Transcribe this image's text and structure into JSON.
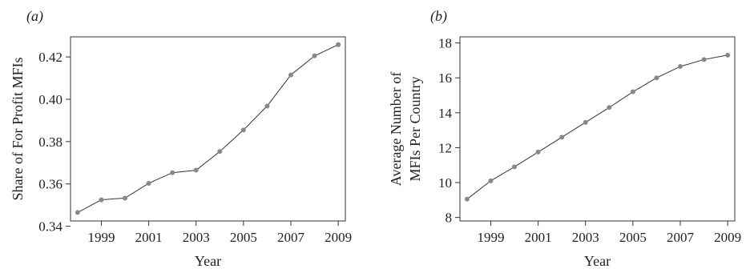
{
  "chart_data": [
    {
      "panel_label": "(a)",
      "type": "line",
      "x": [
        1998,
        1999,
        2000,
        2001,
        2002,
        2003,
        2004,
        2005,
        2006,
        2007,
        2008,
        2009
      ],
      "series": [
        {
          "values": [
            0.3465,
            0.3525,
            0.3533,
            0.3603,
            0.3653,
            0.3665,
            0.3753,
            0.3855,
            0.3968,
            0.4115,
            0.4205,
            0.4258
          ]
        }
      ],
      "xlabel": "Year",
      "ylabel": "Share of For Profit MFIs",
      "xticks": [
        1999,
        2001,
        2003,
        2005,
        2007,
        2009
      ],
      "yticks": [
        0.34,
        0.36,
        0.38,
        0.4,
        0.42
      ],
      "ytick_labels": [
        "0.34",
        "0.36",
        "0.38",
        "0.40",
        "0.42"
      ],
      "xlim": [
        1997.7,
        2009.3
      ],
      "ylim": [
        0.3425,
        0.4295
      ],
      "grid": false,
      "line_color": "#333333",
      "point_color": "#888888"
    },
    {
      "panel_label": "(b)",
      "type": "line",
      "x": [
        1998,
        1999,
        2000,
        2001,
        2002,
        2003,
        2004,
        2005,
        2006,
        2007,
        2008,
        2009
      ],
      "series": [
        {
          "values": [
            9.05,
            10.1,
            10.9,
            11.75,
            12.6,
            13.45,
            14.3,
            15.2,
            16.0,
            16.65,
            17.05,
            17.3
          ]
        }
      ],
      "xlabel": "Year",
      "ylabel": [
        "Average Number of",
        "MFIs Per Country"
      ],
      "xticks": [
        1999,
        2001,
        2003,
        2005,
        2007,
        2009
      ],
      "yticks": [
        8,
        10,
        12,
        14,
        16,
        18
      ],
      "ytick_labels": [
        "8",
        "10",
        "12",
        "14",
        "16",
        "18"
      ],
      "xlim": [
        1997.7,
        2009.3
      ],
      "ylim": [
        7.8,
        18.35
      ],
      "grid": false,
      "line_color": "#333333",
      "point_color": "#888888"
    }
  ]
}
